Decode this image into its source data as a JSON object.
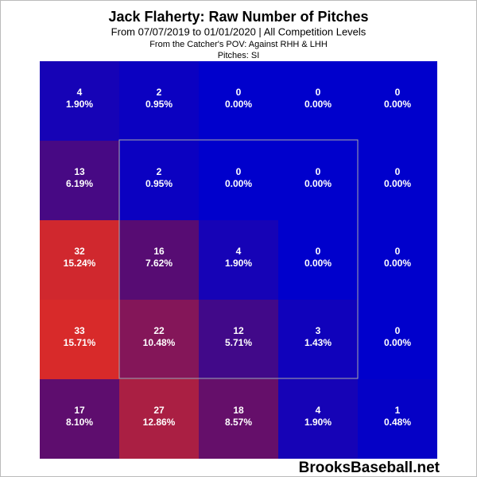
{
  "chart_data": {
    "type": "heatmap",
    "title": "Jack Flaherty: Raw Number of Pitches",
    "subtitle": "From 07/07/2019 to 01/01/2020 | All Competition Levels",
    "pov": "From the Catcher's POV:  Against RHH & LHH",
    "pitches": "Pitches:  SI",
    "watermark": "BrooksBaseball.net",
    "values": [
      [
        4,
        2,
        0,
        0,
        0
      ],
      [
        13,
        2,
        0,
        0,
        0
      ],
      [
        32,
        16,
        4,
        0,
        0
      ],
      [
        33,
        22,
        12,
        3,
        0
      ],
      [
        17,
        27,
        18,
        4,
        1
      ]
    ],
    "percents": [
      [
        1.9,
        0.95,
        0,
        0,
        0
      ],
      [
        6.19,
        0.95,
        0,
        0,
        0
      ],
      [
        15.24,
        7.62,
        1.9,
        0,
        0
      ],
      [
        15.71,
        10.48,
        5.71,
        1.43,
        0
      ],
      [
        8.1,
        12.86,
        8.57,
        1.9,
        0.48
      ]
    ],
    "percent_labels": [
      [
        "1.90%",
        "0.95%",
        "0.00%",
        "0.00%",
        "0.00%"
      ],
      [
        "6.19%",
        "0.95%",
        "0.00%",
        "0.00%",
        "0.00%"
      ],
      [
        "15.24%",
        "7.62%",
        "1.90%",
        "0.00%",
        "0.00%"
      ],
      [
        "15.71%",
        "10.48%",
        "5.71%",
        "1.43%",
        "0.00%"
      ],
      [
        "8.10%",
        "12.86%",
        "8.57%",
        "1.90%",
        "0.48%"
      ]
    ],
    "color_stops": [
      "#0000cc",
      "#5a0c70",
      "#d82a2a"
    ]
  }
}
